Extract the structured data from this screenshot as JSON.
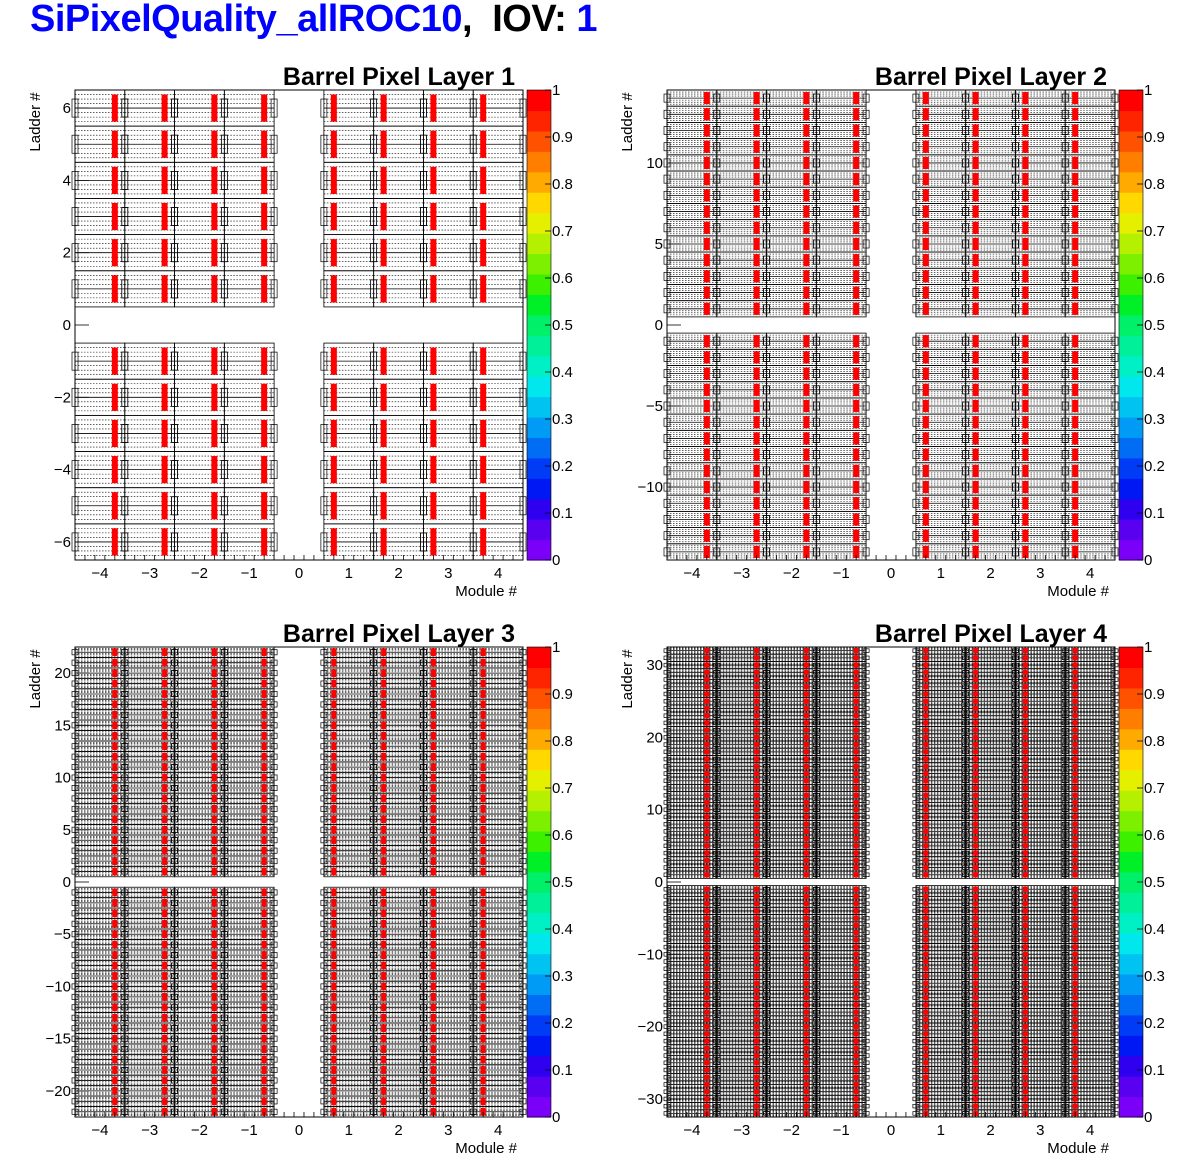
{
  "header": {
    "tag": "SiPixelQuality_allROC10",
    "sep": ",",
    "iov_label": "IOV:",
    "iov_value": "1",
    "tag_color": "#0000ff",
    "label_color": "#000000"
  },
  "palette_colors": [
    "#7a00f8",
    "#5a00f0",
    "#2f00ef",
    "#0019f4",
    "#003cf6",
    "#006df4",
    "#009bf4",
    "#00c3f2",
    "#00e8ee",
    "#00f0c6",
    "#00f099",
    "#00f06a",
    "#00f027",
    "#3cf000",
    "#7df000",
    "#b4f000",
    "#e4f000",
    "#ffd800",
    "#ffaa00",
    "#ff7e00",
    "#ff5200",
    "#ff2400",
    "#ff0000"
  ],
  "chart_data": [
    {
      "type": "heatmap",
      "title": "Barrel Pixel Layer 1",
      "xlabel": "Module #",
      "ylabel": "Ladder #",
      "xlim": [
        -4.5,
        4.5
      ],
      "ylim": [
        -6.5,
        6.5
      ],
      "x_ticks": [
        -4,
        -3,
        -2,
        -1,
        0,
        1,
        2,
        3,
        4
      ],
      "y_ticks": [
        -6,
        -4,
        -2,
        0,
        2,
        4,
        6
      ],
      "ladders": 6,
      "modules": [
        -4,
        -3,
        -2,
        -1,
        1,
        2,
        3,
        4
      ],
      "dead_roc_value": 1,
      "z_range": [
        0,
        1
      ],
      "z_ticks": [
        "0",
        "0.1",
        "0.2",
        "0.3",
        "0.4",
        "0.5",
        "0.6",
        "0.7",
        "0.8",
        "0.9",
        "1"
      ]
    },
    {
      "type": "heatmap",
      "title": "Barrel Pixel Layer 2",
      "xlabel": "Module #",
      "ylabel": "Ladder #",
      "xlim": [
        -4.5,
        4.5
      ],
      "ylim": [
        -14.5,
        14.5
      ],
      "x_ticks": [
        -4,
        -3,
        -2,
        -1,
        0,
        1,
        2,
        3,
        4
      ],
      "y_ticks": [
        -10,
        -5,
        0,
        5,
        10
      ],
      "ladders": 14,
      "modules": [
        -4,
        -3,
        -2,
        -1,
        1,
        2,
        3,
        4
      ],
      "dead_roc_value": 1,
      "z_range": [
        0,
        1
      ],
      "z_ticks": [
        "0",
        "0.1",
        "0.2",
        "0.3",
        "0.4",
        "0.5",
        "0.6",
        "0.7",
        "0.8",
        "0.9",
        "1"
      ]
    },
    {
      "type": "heatmap",
      "title": "Barrel Pixel Layer 3",
      "xlabel": "Module #",
      "ylabel": "Ladder #",
      "xlim": [
        -4.5,
        4.5
      ],
      "ylim": [
        -22.5,
        22.5
      ],
      "x_ticks": [
        -4,
        -3,
        -2,
        -1,
        0,
        1,
        2,
        3,
        4
      ],
      "y_ticks": [
        -20,
        -15,
        -10,
        -5,
        0,
        5,
        10,
        15,
        20
      ],
      "ladders": 22,
      "modules": [
        -4,
        -3,
        -2,
        -1,
        1,
        2,
        3,
        4
      ],
      "dead_roc_value": 1,
      "z_range": [
        0,
        1
      ],
      "z_ticks": [
        "0",
        "0.1",
        "0.2",
        "0.3",
        "0.4",
        "0.5",
        "0.6",
        "0.7",
        "0.8",
        "0.9",
        "1"
      ]
    },
    {
      "type": "heatmap",
      "title": "Barrel Pixel Layer 4",
      "xlabel": "Module #",
      "ylabel": "Ladder #",
      "xlim": [
        -4.5,
        4.5
      ],
      "ylim": [
        -32.5,
        32.5
      ],
      "x_ticks": [
        -4,
        -3,
        -2,
        -1,
        0,
        1,
        2,
        3,
        4
      ],
      "y_ticks": [
        -30,
        -20,
        -10,
        0,
        10,
        20,
        30
      ],
      "ladders": 32,
      "modules": [
        -4,
        -3,
        -2,
        -1,
        1,
        2,
        3,
        4
      ],
      "dead_roc_value": 1,
      "z_range": [
        0,
        1
      ],
      "z_ticks": [
        "0",
        "0.1",
        "0.2",
        "0.3",
        "0.4",
        "0.5",
        "0.6",
        "0.7",
        "0.8",
        "0.9",
        "1"
      ]
    }
  ]
}
